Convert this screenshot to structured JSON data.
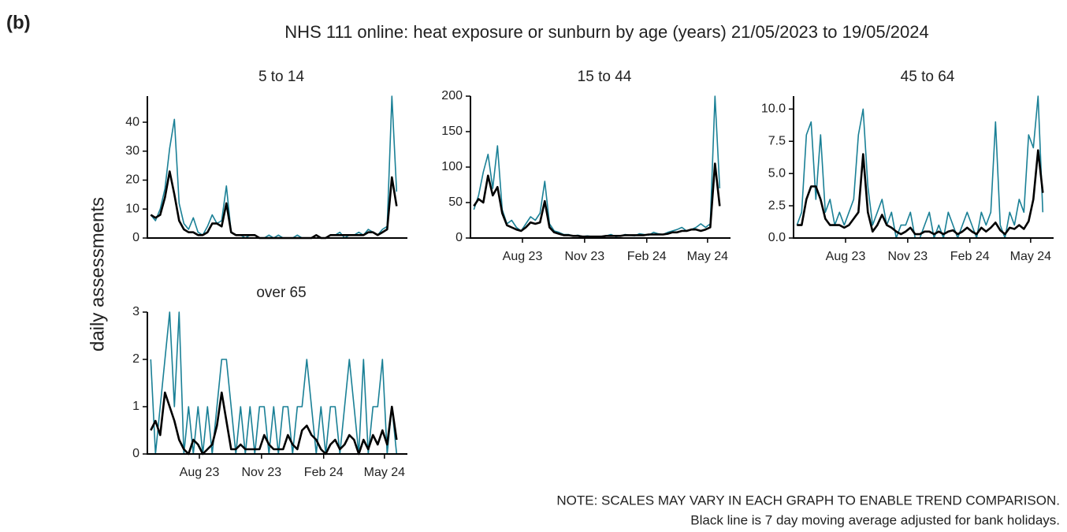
{
  "panel_label": "(b)",
  "title": "NHS 111 online: heat exposure or sunburn by age (years) 21/05/2023 to 19/05/2024",
  "y_label": "daily assessments",
  "notes": [
    "NOTE: SCALES MAY VARY IN EACH GRAPH TO ENABLE TREND COMPARISON.",
    "Black line is 7 day moving average adjusted for bank holidays."
  ],
  "chart_data": [
    {
      "type": "line",
      "title": "5 to 14",
      "x": [
        0,
        7,
        14,
        21,
        28,
        35,
        42,
        49,
        56,
        63,
        70,
        77,
        84,
        91,
        98,
        105,
        112,
        119,
        126,
        133,
        140,
        147,
        154,
        161,
        168,
        175,
        182,
        189,
        196,
        203,
        210,
        217,
        224,
        231,
        238,
        245,
        252,
        259,
        266,
        273,
        280,
        287,
        294,
        301,
        308,
        315,
        322,
        329,
        336,
        343,
        350,
        357,
        364
      ],
      "xlim": [
        -5,
        380
      ],
      "ylim": [
        0,
        49
      ],
      "yticks": [
        0,
        10,
        20,
        30,
        40
      ],
      "series": [
        {
          "color": "#1a8096",
          "values": [
            8,
            6,
            10,
            17,
            31,
            41,
            12,
            5,
            3,
            7,
            2,
            1,
            4,
            8,
            5,
            6,
            18,
            2,
            1,
            1,
            0,
            1,
            1,
            0,
            0,
            1,
            0,
            1,
            0,
            0,
            0,
            1,
            0,
            0,
            0,
            1,
            0,
            0,
            1,
            1,
            2,
            0,
            1,
            1,
            2,
            1,
            3,
            2,
            1,
            3,
            4,
            49,
            16
          ]
        },
        {
          "color": "#000000",
          "values": [
            8,
            7,
            8,
            14,
            23,
            15,
            6,
            3,
            2,
            2,
            1,
            1,
            2,
            5,
            5,
            4,
            12,
            2,
            1,
            1,
            1,
            1,
            1,
            0,
            0,
            0,
            0,
            0,
            0,
            0,
            0,
            0,
            0,
            0,
            0,
            1,
            0,
            0,
            1,
            1,
            1,
            1,
            1,
            1,
            1,
            1,
            2,
            2,
            1,
            2,
            3,
            21,
            11
          ]
        }
      ]
    },
    {
      "type": "line",
      "title": "15 to 44",
      "x": [
        0,
        7,
        14,
        21,
        28,
        35,
        42,
        49,
        56,
        63,
        70,
        77,
        84,
        91,
        98,
        105,
        112,
        119,
        126,
        133,
        140,
        147,
        154,
        161,
        168,
        175,
        182,
        189,
        196,
        203,
        210,
        217,
        224,
        231,
        238,
        245,
        252,
        259,
        266,
        273,
        280,
        287,
        294,
        301,
        308,
        315,
        322,
        329,
        336,
        343,
        350,
        357,
        364
      ],
      "xlim": [
        -5,
        380
      ],
      "ylim": [
        0,
        200
      ],
      "yticks": [
        0,
        50,
        100,
        150,
        200
      ],
      "xticks": [
        {
          "value": 72,
          "label": "Aug 23"
        },
        {
          "value": 164,
          "label": "Nov 23"
        },
        {
          "value": 256,
          "label": "Feb 24"
        },
        {
          "value": 346,
          "label": "May 24"
        }
      ],
      "series": [
        {
          "color": "#1a8096",
          "values": [
            40,
            60,
            93,
            118,
            70,
            130,
            40,
            20,
            25,
            15,
            10,
            20,
            30,
            25,
            35,
            80,
            20,
            10,
            8,
            5,
            5,
            3,
            4,
            2,
            3,
            2,
            1,
            2,
            3,
            5,
            2,
            3,
            5,
            4,
            3,
            6,
            5,
            4,
            8,
            6,
            5,
            8,
            10,
            12,
            15,
            10,
            12,
            15,
            20,
            15,
            20,
            200,
            70
          ]
        },
        {
          "color": "#000000",
          "values": [
            45,
            55,
            50,
            88,
            60,
            72,
            35,
            18,
            15,
            12,
            10,
            15,
            22,
            20,
            22,
            52,
            15,
            8,
            6,
            4,
            4,
            3,
            3,
            2,
            2,
            2,
            2,
            2,
            3,
            3,
            3,
            3,
            4,
            4,
            4,
            4,
            4,
            5,
            5,
            5,
            5,
            6,
            8,
            8,
            10,
            10,
            12,
            12,
            10,
            12,
            15,
            105,
            45
          ]
        }
      ]
    },
    {
      "type": "line",
      "title": "45 to 64",
      "x": [
        0,
        7,
        14,
        21,
        28,
        35,
        42,
        49,
        56,
        63,
        70,
        77,
        84,
        91,
        98,
        105,
        112,
        119,
        126,
        133,
        140,
        147,
        154,
        161,
        168,
        175,
        182,
        189,
        196,
        203,
        210,
        217,
        224,
        231,
        238,
        245,
        252,
        259,
        266,
        273,
        280,
        287,
        294,
        301,
        308,
        315,
        322,
        329,
        336,
        343,
        350,
        357,
        364
      ],
      "xlim": [
        -5,
        380
      ],
      "ylim": [
        0,
        11
      ],
      "yticks": [
        {
          "value": 0,
          "label": "0.0"
        },
        {
          "value": 2.5,
          "label": "2.5"
        },
        {
          "value": 5,
          "label": "5.0"
        },
        {
          "value": 7.5,
          "label": "7.5"
        },
        {
          "value": 10,
          "label": "10.0"
        }
      ],
      "xticks": [
        {
          "value": 72,
          "label": "Aug 23"
        },
        {
          "value": 164,
          "label": "Nov 23"
        },
        {
          "value": 256,
          "label": "Feb 24"
        },
        {
          "value": 346,
          "label": "May 24"
        }
      ],
      "series": [
        {
          "color": "#1a8096",
          "values": [
            1,
            2,
            8,
            9,
            3,
            8,
            2,
            3,
            1,
            2,
            1,
            2,
            3,
            8,
            10,
            4,
            1,
            2,
            3,
            1,
            2,
            0,
            1,
            1,
            2,
            0,
            0,
            1,
            2,
            0,
            1,
            0,
            2,
            1,
            0,
            1,
            2,
            1,
            0,
            2,
            1,
            2,
            9,
            1,
            0,
            2,
            1,
            3,
            2,
            8,
            7,
            11,
            2
          ]
        },
        {
          "color": "#000000",
          "values": [
            1,
            1,
            3,
            4,
            4,
            3,
            1.5,
            1,
            1,
            1,
            0.8,
            1,
            1.5,
            2,
            6.5,
            2,
            0.5,
            1,
            1.8,
            1,
            0.8,
            0.5,
            0.3,
            0.5,
            0.8,
            0.3,
            0.3,
            0.5,
            0.5,
            0.3,
            0.5,
            0.3,
            0.5,
            0.6,
            0.3,
            0.5,
            0.8,
            0.5,
            0.3,
            0.8,
            0.5,
            0.8,
            1.2,
            0.6,
            0.3,
            0.8,
            0.7,
            1,
            0.7,
            1.3,
            3,
            6.8,
            3.5
          ]
        }
      ]
    },
    {
      "type": "line",
      "title": "over 65",
      "x": [
        0,
        7,
        14,
        21,
        28,
        35,
        42,
        49,
        56,
        63,
        70,
        77,
        84,
        91,
        98,
        105,
        112,
        119,
        126,
        133,
        140,
        147,
        154,
        161,
        168,
        175,
        182,
        189,
        196,
        203,
        210,
        217,
        224,
        231,
        238,
        245,
        252,
        259,
        266,
        273,
        280,
        287,
        294,
        301,
        308,
        315,
        322,
        329,
        336,
        343,
        350,
        357,
        364
      ],
      "xlim": [
        -5,
        380
      ],
      "ylim": [
        0,
        3
      ],
      "yticks": [
        0,
        1,
        2,
        3
      ],
      "xticks": [
        {
          "value": 72,
          "label": "Aug 23"
        },
        {
          "value": 164,
          "label": "Nov 23"
        },
        {
          "value": 256,
          "label": "Feb 24"
        },
        {
          "value": 346,
          "label": "May 24"
        }
      ],
      "series": [
        {
          "color": "#1a8096",
          "values": [
            2,
            0,
            1,
            2,
            3,
            1,
            3,
            0,
            1,
            0,
            1,
            0,
            1,
            0,
            1,
            2,
            2,
            1,
            0,
            1,
            0,
            1,
            0,
            1,
            1,
            0,
            1,
            0,
            1,
            1,
            0,
            1,
            1,
            2,
            1,
            0,
            1,
            0,
            1,
            1,
            0,
            1,
            2,
            1,
            0,
            2,
            0,
            1,
            1,
            2,
            0,
            1,
            0
          ]
        },
        {
          "color": "#000000",
          "values": [
            0.5,
            0.7,
            0.4,
            1.3,
            1,
            0.7,
            0.3,
            0.1,
            0,
            0.3,
            0.2,
            0,
            0.1,
            0.2,
            0.6,
            1.3,
            0.7,
            0.1,
            0.1,
            0.2,
            0.1,
            0.1,
            0.1,
            0.1,
            0.4,
            0.2,
            0.1,
            0.1,
            0.1,
            0.4,
            0.2,
            0.1,
            0.5,
            0.6,
            0.4,
            0.3,
            0.1,
            0,
            0.2,
            0.3,
            0.1,
            0.2,
            0.4,
            0.3,
            0,
            0.3,
            0.1,
            0.4,
            0.2,
            0.5,
            0.2,
            1,
            0.3
          ]
        }
      ]
    }
  ]
}
